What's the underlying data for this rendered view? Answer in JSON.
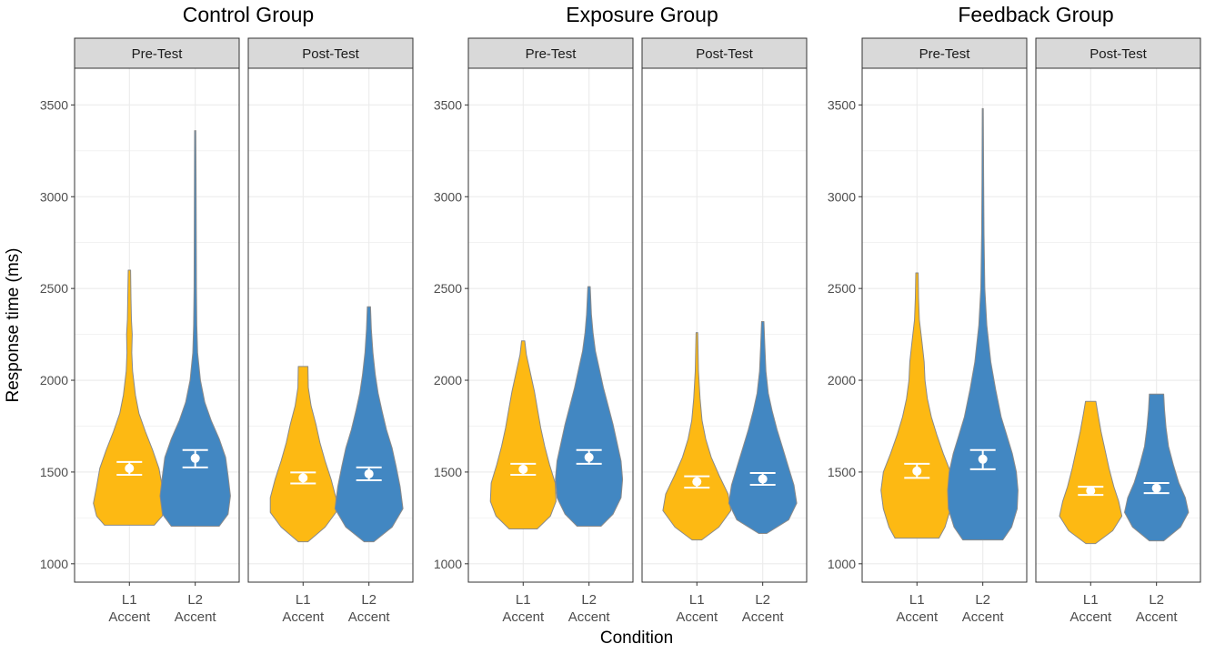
{
  "chart_data": {
    "type": "violin",
    "ylabel": "Response time (ms)",
    "xlabel": "Condition",
    "ylim": [
      900,
      3700
    ],
    "yticks": [
      1000,
      1500,
      2000,
      2500,
      3000,
      3500
    ],
    "yticks_text": [
      "1000",
      "1500",
      "2000",
      "2500",
      "3000",
      "3500"
    ],
    "categories": [
      {
        "line1": "L1",
        "line2": "Accent"
      },
      {
        "line1": "L2",
        "line2": "Accent"
      }
    ],
    "colors": {
      "L1": "#FDB913",
      "L2": "#4287C2",
      "outline": "#8a8a8a",
      "strip": "#d9d9d9",
      "grid": "#ebebeb",
      "marker": "#ffffff"
    },
    "groups": [
      {
        "title": "Control Group",
        "facets": [
          {
            "label": "Pre-Test",
            "violins": [
              {
                "category": "L1 Accent",
                "min": 1210,
                "max": 2600,
                "mean": 1520,
                "ci": [
                  1485,
                  1555
                ],
                "profile": [
                  [
                    1210,
                    0.62
                  ],
                  [
                    1260,
                    0.82
                  ],
                  [
                    1330,
                    0.9
                  ],
                  [
                    1420,
                    0.82
                  ],
                  [
                    1520,
                    0.74
                  ],
                  [
                    1620,
                    0.58
                  ],
                  [
                    1720,
                    0.4
                  ],
                  [
                    1820,
                    0.24
                  ],
                  [
                    1920,
                    0.15
                  ],
                  [
                    2050,
                    0.08
                  ],
                  [
                    2150,
                    0.06
                  ],
                  [
                    2250,
                    0.07
                  ],
                  [
                    2330,
                    0.05
                  ],
                  [
                    2450,
                    0.04
                  ],
                  [
                    2600,
                    0.03
                  ]
                ]
              },
              {
                "category": "L2 Accent",
                "min": 1205,
                "max": 3360,
                "mean": 1575,
                "ci": [
                  1525,
                  1620
                ],
                "profile": [
                  [
                    1205,
                    0.6
                  ],
                  [
                    1270,
                    0.82
                  ],
                  [
                    1370,
                    0.88
                  ],
                  [
                    1480,
                    0.82
                  ],
                  [
                    1580,
                    0.76
                  ],
                  [
                    1680,
                    0.6
                  ],
                  [
                    1780,
                    0.4
                  ],
                  [
                    1880,
                    0.24
                  ],
                  [
                    2000,
                    0.13
                  ],
                  [
                    2150,
                    0.06
                  ],
                  [
                    2300,
                    0.04
                  ],
                  [
                    2500,
                    0.03
                  ],
                  [
                    2800,
                    0.025
                  ],
                  [
                    3100,
                    0.02
                  ],
                  [
                    3360,
                    0.015
                  ]
                ]
              }
            ]
          },
          {
            "label": "Post-Test",
            "violins": [
              {
                "category": "L1 Accent",
                "min": 1120,
                "max": 2075,
                "mean": 1468,
                "ci": [
                  1438,
                  1498
                ],
                "profile": [
                  [
                    1120,
                    0.12
                  ],
                  [
                    1200,
                    0.55
                  ],
                  [
                    1280,
                    0.82
                  ],
                  [
                    1360,
                    0.82
                  ],
                  [
                    1460,
                    0.7
                  ],
                  [
                    1560,
                    0.55
                  ],
                  [
                    1660,
                    0.42
                  ],
                  [
                    1760,
                    0.32
                  ],
                  [
                    1860,
                    0.2
                  ],
                  [
                    1960,
                    0.13
                  ],
                  [
                    2075,
                    0.12
                  ]
                ]
              },
              {
                "category": "L2 Accent",
                "min": 1120,
                "max": 2400,
                "mean": 1490,
                "ci": [
                  1455,
                  1525
                ],
                "profile": [
                  [
                    1120,
                    0.12
                  ],
                  [
                    1200,
                    0.58
                  ],
                  [
                    1300,
                    0.85
                  ],
                  [
                    1420,
                    0.78
                  ],
                  [
                    1530,
                    0.68
                  ],
                  [
                    1630,
                    0.58
                  ],
                  [
                    1730,
                    0.44
                  ],
                  [
                    1830,
                    0.33
                  ],
                  [
                    1930,
                    0.23
                  ],
                  [
                    2030,
                    0.16
                  ],
                  [
                    2150,
                    0.1
                  ],
                  [
                    2280,
                    0.06
                  ],
                  [
                    2400,
                    0.04
                  ]
                ]
              }
            ]
          }
        ]
      },
      {
        "title": "Exposure Group",
        "facets": [
          {
            "label": "Pre-Test",
            "violins": [
              {
                "category": "L1 Accent",
                "min": 1190,
                "max": 2215,
                "mean": 1515,
                "ci": [
                  1485,
                  1545
                ],
                "profile": [
                  [
                    1190,
                    0.35
                  ],
                  [
                    1260,
                    0.68
                  ],
                  [
                    1340,
                    0.82
                  ],
                  [
                    1440,
                    0.8
                  ],
                  [
                    1540,
                    0.66
                  ],
                  [
                    1640,
                    0.54
                  ],
                  [
                    1740,
                    0.44
                  ],
                  [
                    1840,
                    0.36
                  ],
                  [
                    1940,
                    0.28
                  ],
                  [
                    2040,
                    0.18
                  ],
                  [
                    2140,
                    0.08
                  ],
                  [
                    2215,
                    0.04
                  ]
                ]
              },
              {
                "category": "L2 Accent",
                "min": 1205,
                "max": 2510,
                "mean": 1580,
                "ci": [
                  1545,
                  1620
                ],
                "profile": [
                  [
                    1205,
                    0.3
                  ],
                  [
                    1270,
                    0.6
                  ],
                  [
                    1360,
                    0.8
                  ],
                  [
                    1460,
                    0.84
                  ],
                  [
                    1560,
                    0.8
                  ],
                  [
                    1660,
                    0.7
                  ],
                  [
                    1760,
                    0.6
                  ],
                  [
                    1860,
                    0.48
                  ],
                  [
                    1960,
                    0.36
                  ],
                  [
                    2060,
                    0.26
                  ],
                  [
                    2160,
                    0.16
                  ],
                  [
                    2260,
                    0.1
                  ],
                  [
                    2360,
                    0.06
                  ],
                  [
                    2510,
                    0.03
                  ]
                ]
              }
            ]
          },
          {
            "label": "Post-Test",
            "violins": [
              {
                "category": "L1 Accent",
                "min": 1130,
                "max": 2260,
                "mean": 1447,
                "ci": [
                  1415,
                  1477
                ],
                "profile": [
                  [
                    1130,
                    0.12
                  ],
                  [
                    1200,
                    0.55
                  ],
                  [
                    1290,
                    0.85
                  ],
                  [
                    1380,
                    0.78
                  ],
                  [
                    1480,
                    0.56
                  ],
                  [
                    1580,
                    0.36
                  ],
                  [
                    1680,
                    0.22
                  ],
                  [
                    1780,
                    0.13
                  ],
                  [
                    1900,
                    0.08
                  ],
                  [
                    2050,
                    0.04
                  ],
                  [
                    2260,
                    0.02
                  ]
                ]
              },
              {
                "category": "L2 Accent",
                "min": 1165,
                "max": 2320,
                "mean": 1462,
                "ci": [
                  1430,
                  1495
                ],
                "profile": [
                  [
                    1165,
                    0.1
                  ],
                  [
                    1240,
                    0.65
                  ],
                  [
                    1330,
                    0.85
                  ],
                  [
                    1430,
                    0.78
                  ],
                  [
                    1530,
                    0.64
                  ],
                  [
                    1630,
                    0.5
                  ],
                  [
                    1730,
                    0.36
                  ],
                  [
                    1830,
                    0.24
                  ],
                  [
                    1930,
                    0.14
                  ],
                  [
                    2050,
                    0.08
                  ],
                  [
                    2200,
                    0.05
                  ],
                  [
                    2320,
                    0.03
                  ]
                ]
              }
            ]
          }
        ]
      },
      {
        "title": "Feedback Group",
        "facets": [
          {
            "label": "Pre-Test",
            "violins": [
              {
                "category": "L1 Accent",
                "min": 1140,
                "max": 2585,
                "mean": 1505,
                "ci": [
                  1468,
                  1545
                ],
                "profile": [
                  [
                    1140,
                    0.55
                  ],
                  [
                    1200,
                    0.7
                  ],
                  [
                    1300,
                    0.84
                  ],
                  [
                    1400,
                    0.9
                  ],
                  [
                    1500,
                    0.84
                  ],
                  [
                    1600,
                    0.66
                  ],
                  [
                    1700,
                    0.5
                  ],
                  [
                    1800,
                    0.36
                  ],
                  [
                    1900,
                    0.26
                  ],
                  [
                    2000,
                    0.2
                  ],
                  [
                    2100,
                    0.18
                  ],
                  [
                    2200,
                    0.13
                  ],
                  [
                    2330,
                    0.06
                  ],
                  [
                    2450,
                    0.04
                  ],
                  [
                    2585,
                    0.03
                  ]
                ]
              },
              {
                "category": "L2 Accent",
                "min": 1130,
                "max": 3480,
                "mean": 1570,
                "ci": [
                  1515,
                  1620
                ],
                "profile": [
                  [
                    1130,
                    0.5
                  ],
                  [
                    1200,
                    0.72
                  ],
                  [
                    1300,
                    0.86
                  ],
                  [
                    1400,
                    0.88
                  ],
                  [
                    1500,
                    0.84
                  ],
                  [
                    1600,
                    0.74
                  ],
                  [
                    1700,
                    0.6
                  ],
                  [
                    1800,
                    0.46
                  ],
                  [
                    1950,
                    0.32
                  ],
                  [
                    2100,
                    0.2
                  ],
                  [
                    2300,
                    0.1
                  ],
                  [
                    2500,
                    0.05
                  ],
                  [
                    2800,
                    0.03
                  ],
                  [
                    3100,
                    0.02
                  ],
                  [
                    3480,
                    0.012
                  ]
                ]
              }
            ]
          },
          {
            "label": "Post-Test",
            "violins": [
              {
                "category": "L1 Accent",
                "min": 1110,
                "max": 1885,
                "mean": 1398,
                "ci": [
                  1375,
                  1420
                ],
                "profile": [
                  [
                    1110,
                    0.12
                  ],
                  [
                    1180,
                    0.55
                  ],
                  [
                    1260,
                    0.78
                  ],
                  [
                    1340,
                    0.7
                  ],
                  [
                    1420,
                    0.58
                  ],
                  [
                    1520,
                    0.46
                  ],
                  [
                    1620,
                    0.36
                  ],
                  [
                    1720,
                    0.26
                  ],
                  [
                    1820,
                    0.18
                  ],
                  [
                    1885,
                    0.13
                  ]
                ]
              },
              {
                "category": "L2 Accent",
                "min": 1125,
                "max": 1925,
                "mean": 1412,
                "ci": [
                  1385,
                  1440
                ],
                "profile": [
                  [
                    1125,
                    0.18
                  ],
                  [
                    1200,
                    0.6
                  ],
                  [
                    1280,
                    0.8
                  ],
                  [
                    1360,
                    0.72
                  ],
                  [
                    1440,
                    0.56
                  ],
                  [
                    1540,
                    0.42
                  ],
                  [
                    1640,
                    0.3
                  ],
                  [
                    1740,
                    0.24
                  ],
                  [
                    1840,
                    0.2
                  ],
                  [
                    1925,
                    0.18
                  ]
                ]
              }
            ]
          }
        ]
      }
    ]
  }
}
